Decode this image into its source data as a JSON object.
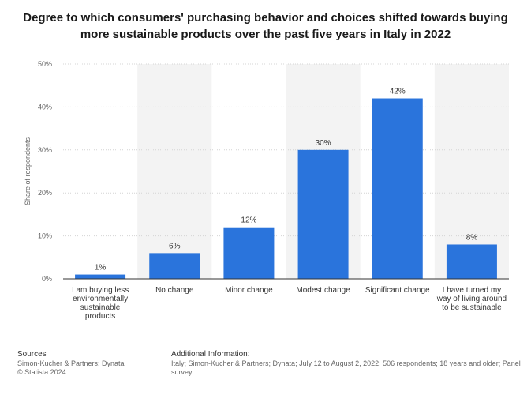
{
  "title": "Degree to which consumers' purchasing behavior and choices shifted towards buying more sustainable products over the past five years in Italy in 2022",
  "colors": {
    "bar": "#2a74dc",
    "band": "#f3f3f3",
    "grid": "#d4d4d4",
    "axis": "#333333"
  },
  "chart_data": {
    "type": "bar",
    "categories": [
      [
        "I am buying less",
        "environmentally",
        "sustainable",
        "products"
      ],
      [
        "No change"
      ],
      [
        "Minor change"
      ],
      [
        "Modest change"
      ],
      [
        "Significant change"
      ],
      [
        "I have turned my",
        "way of living around",
        "to be sustainable"
      ]
    ],
    "values": [
      1,
      6,
      12,
      30,
      42,
      8
    ],
    "value_labels": [
      "1%",
      "6%",
      "12%",
      "30%",
      "42%",
      "8%"
    ],
    "ylabel": "Share of respondents",
    "ylim": [
      0,
      50
    ],
    "yticks": [
      0,
      10,
      20,
      30,
      40,
      50
    ],
    "ytick_labels": [
      "0%",
      "10%",
      "20%",
      "30%",
      "40%",
      "50%"
    ],
    "grid": true,
    "legend": "none"
  },
  "footer": {
    "sources_title": "Sources",
    "sources_line1": "Simon-Kucher & Partners; Dynata",
    "sources_line2": "© Statista 2024",
    "additional_title": "Additional Information:",
    "additional_text": "Italy; Simon-Kucher & Partners; Dynata; July 12 to August 2, 2022; 506 respondents; 18 years and older; Panel survey"
  }
}
